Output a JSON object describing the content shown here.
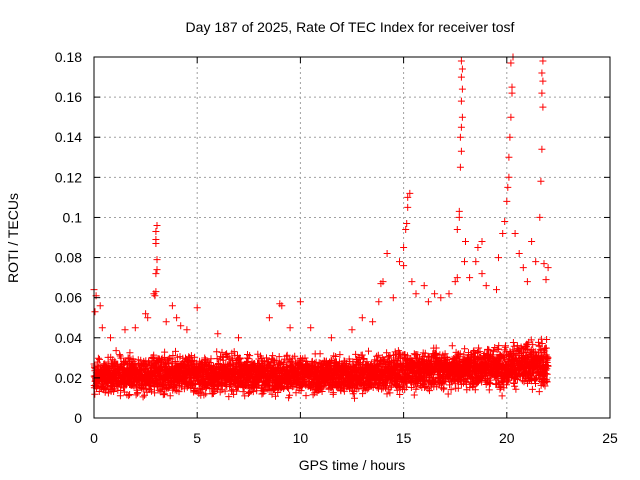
{
  "chart_data": {
    "type": "scatter",
    "title": "Day 187 of 2025, Rate Of TEC Index for receiver tosf",
    "xlabel": "GPS time / hours",
    "ylabel": "ROTI / TECUs",
    "xlim": [
      0,
      25
    ],
    "ylim": [
      0,
      0.18
    ],
    "xticks": [
      0,
      5,
      10,
      15,
      20,
      25
    ],
    "yticks": [
      0,
      0.02,
      0.04,
      0.06,
      0.08,
      0.1,
      0.12,
      0.14,
      0.16,
      0.18
    ],
    "grid": true,
    "marker": "+",
    "series": [
      {
        "name": "ROTI",
        "color": "#ff0000",
        "baseline_band": {
          "x_range": [
            0,
            22
          ],
          "y_range": [
            0.005,
            0.04
          ]
        },
        "points": [
          [
            0.0,
            0.064
          ],
          [
            0.05,
            0.053
          ],
          [
            0.1,
            0.061
          ],
          [
            0.3,
            0.056
          ],
          [
            0.4,
            0.045
          ],
          [
            0.8,
            0.04
          ],
          [
            1.5,
            0.044
          ],
          [
            2.0,
            0.045
          ],
          [
            2.5,
            0.052
          ],
          [
            2.6,
            0.05
          ],
          [
            2.9,
            0.062
          ],
          [
            2.95,
            0.061
          ],
          [
            3.0,
            0.063
          ],
          [
            3.0,
            0.072
          ],
          [
            3.05,
            0.074
          ],
          [
            3.05,
            0.079
          ],
          [
            3.0,
            0.087
          ],
          [
            3.0,
            0.089
          ],
          [
            3.0,
            0.093
          ],
          [
            3.05,
            0.096
          ],
          [
            3.5,
            0.048
          ],
          [
            3.8,
            0.056
          ],
          [
            4.0,
            0.05
          ],
          [
            4.2,
            0.046
          ],
          [
            4.5,
            0.044
          ],
          [
            5.0,
            0.055
          ],
          [
            6.0,
            0.042
          ],
          [
            7.0,
            0.04
          ],
          [
            8.5,
            0.05
          ],
          [
            9.0,
            0.057
          ],
          [
            9.1,
            0.056
          ],
          [
            9.5,
            0.045
          ],
          [
            10.0,
            0.058
          ],
          [
            10.5,
            0.045
          ],
          [
            11.5,
            0.04
          ],
          [
            12.5,
            0.044
          ],
          [
            13.0,
            0.05
          ],
          [
            13.5,
            0.048
          ],
          [
            13.8,
            0.058
          ],
          [
            13.9,
            0.067
          ],
          [
            14.0,
            0.068
          ],
          [
            14.2,
            0.082
          ],
          [
            14.5,
            0.06
          ],
          [
            14.8,
            0.078
          ],
          [
            15.0,
            0.076
          ],
          [
            15.0,
            0.085
          ],
          [
            15.1,
            0.094
          ],
          [
            15.15,
            0.097
          ],
          [
            15.2,
            0.105
          ],
          [
            15.2,
            0.11
          ],
          [
            15.3,
            0.112
          ],
          [
            15.4,
            0.068
          ],
          [
            15.6,
            0.062
          ],
          [
            16.0,
            0.066
          ],
          [
            16.2,
            0.058
          ],
          [
            16.5,
            0.062
          ],
          [
            16.8,
            0.06
          ],
          [
            17.2,
            0.062
          ],
          [
            17.5,
            0.068
          ],
          [
            17.6,
            0.07
          ],
          [
            17.6,
            0.094
          ],
          [
            17.7,
            0.1
          ],
          [
            17.7,
            0.103
          ],
          [
            17.75,
            0.125
          ],
          [
            17.8,
            0.133
          ],
          [
            17.75,
            0.14
          ],
          [
            17.8,
            0.145
          ],
          [
            17.85,
            0.15
          ],
          [
            17.8,
            0.158
          ],
          [
            17.85,
            0.164
          ],
          [
            17.8,
            0.17
          ],
          [
            17.85,
            0.174
          ],
          [
            17.8,
            0.178
          ],
          [
            17.95,
            0.078
          ],
          [
            18.0,
            0.088
          ],
          [
            18.2,
            0.07
          ],
          [
            18.5,
            0.078
          ],
          [
            18.6,
            0.085
          ],
          [
            18.8,
            0.072
          ],
          [
            18.8,
            0.088
          ],
          [
            19.0,
            0.066
          ],
          [
            19.5,
            0.064
          ],
          [
            19.6,
            0.08
          ],
          [
            19.8,
            0.092
          ],
          [
            19.9,
            0.098
          ],
          [
            20.0,
            0.108
          ],
          [
            20.05,
            0.115
          ],
          [
            20.1,
            0.12
          ],
          [
            20.1,
            0.13
          ],
          [
            20.15,
            0.14
          ],
          [
            20.2,
            0.15
          ],
          [
            20.25,
            0.162
          ],
          [
            20.25,
            0.165
          ],
          [
            20.2,
            0.177
          ],
          [
            20.3,
            0.18
          ],
          [
            20.4,
            0.092
          ],
          [
            20.6,
            0.082
          ],
          [
            20.8,
            0.075
          ],
          [
            21.0,
            0.068
          ],
          [
            21.2,
            0.088
          ],
          [
            21.4,
            0.078
          ],
          [
            21.6,
            0.1
          ],
          [
            21.65,
            0.118
          ],
          [
            21.7,
            0.134
          ],
          [
            21.75,
            0.155
          ],
          [
            21.7,
            0.162
          ],
          [
            21.75,
            0.168
          ],
          [
            21.7,
            0.172
          ],
          [
            21.75,
            0.178
          ],
          [
            21.8,
            0.077
          ],
          [
            21.9,
            0.069
          ],
          [
            22.0,
            0.075
          ]
        ]
      }
    ]
  }
}
